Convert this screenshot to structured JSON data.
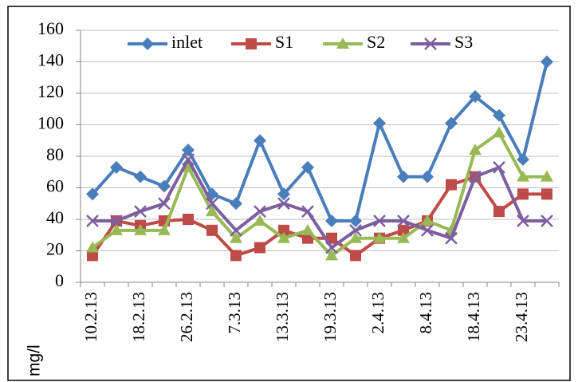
{
  "chart_data": {
    "type": "line",
    "y_label": "mg/l",
    "categories": [
      "10.2.13",
      null,
      "18.2.13",
      null,
      "26.2.13",
      null,
      "7.3.13",
      null,
      "13.3.13",
      null,
      "19.3.13",
      null,
      "2.4.13",
      null,
      "8.4.13",
      null,
      "18.4.13",
      null,
      "23.4.13",
      null
    ],
    "series": [
      {
        "name": "inlet",
        "color": "#4a7ebb",
        "marker": "diamond",
        "values": [
          56,
          73,
          67,
          61,
          84,
          56,
          50,
          90,
          56,
          73,
          39,
          39,
          101,
          67,
          67,
          101,
          118,
          106,
          78,
          140
        ]
      },
      {
        "name": "S1",
        "color": "#be4b48",
        "marker": "square",
        "values": [
          17,
          39,
          36,
          39,
          40,
          33,
          17,
          22,
          33,
          28,
          28,
          17,
          28,
          33,
          39,
          62,
          67,
          45,
          56,
          56
        ]
      },
      {
        "name": "S2",
        "color": "#98b954",
        "marker": "triangle",
        "values": [
          22,
          33,
          33,
          33,
          73,
          45,
          28,
          39,
          28,
          33,
          17,
          28,
          28,
          28,
          39,
          33,
          84,
          95,
          67,
          67
        ]
      },
      {
        "name": "S3",
        "color": "#7d5fa0",
        "marker": "x",
        "values": [
          39,
          39,
          45,
          50,
          78,
          50,
          33,
          45,
          50,
          45,
          22,
          33,
          39,
          39,
          33,
          28,
          67,
          73,
          39,
          39
        ]
      }
    ],
    "ylim": [
      0,
      160
    ],
    "yticks": [
      0,
      20,
      40,
      60,
      80,
      100,
      120,
      140,
      160
    ],
    "grid": true,
    "legend": "top"
  }
}
